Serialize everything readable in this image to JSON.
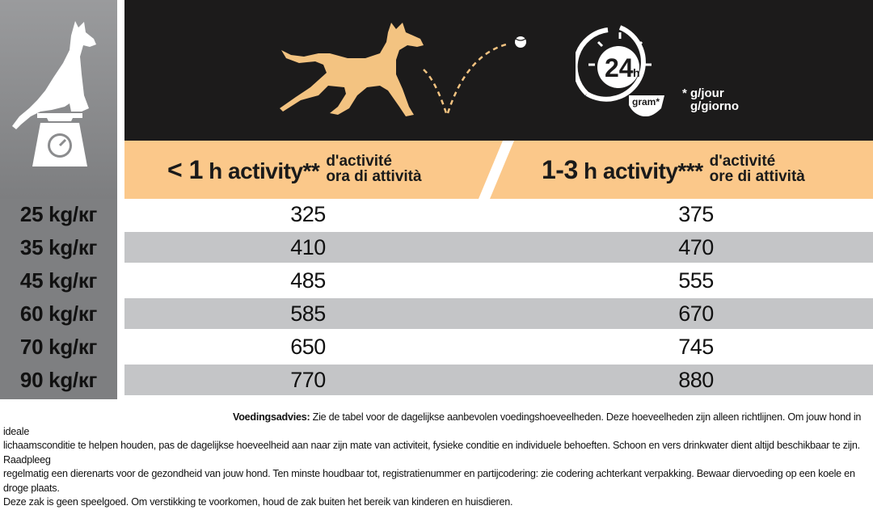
{
  "header": {
    "clock_label": "24",
    "clock_unit": "h",
    "gram_label": "gram*",
    "gram_note_1": "* g/jour",
    "gram_note_2": "g/giorno"
  },
  "columns": [
    {
      "main_lt": "< 1",
      "main_h": " h activity**",
      "sub_1": "d'activité",
      "sub_2": "ora di attività"
    },
    {
      "main_lt": "1-3",
      "main_h": " h activity***",
      "sub_1": "d'activité",
      "sub_2": "ore di attività"
    }
  ],
  "rows": [
    {
      "weight": "25 kg/кг",
      "low": "325",
      "high": "375"
    },
    {
      "weight": "35 kg/кг",
      "low": "410",
      "high": "470"
    },
    {
      "weight": "45 kg/кг",
      "low": "485",
      "high": "555"
    },
    {
      "weight": "60 kg/кг",
      "low": "585",
      "high": "670"
    },
    {
      "weight": "70 kg/кг",
      "low": "650",
      "high": "745"
    },
    {
      "weight": "90 kg/кг",
      "low": "770",
      "high": "880"
    }
  ],
  "advice": {
    "title": "Voedingsadvies:",
    "line1": "Zie de tabel voor de dagelijkse aanbevolen voedingshoeveelheden. Deze hoeveelheden zijn alleen richtlijnen. Om jouw hond in ideale",
    "line2": "lichaamsconditie te helpen houden, pas de dagelijkse hoeveelheid aan naar zijn mate van activiteit, fysieke conditie en individuele behoeften. Schoon en vers drinkwater dient altijd beschikbaar te zijn. Raadpleeg",
    "line3": "regelmatig een dierenarts voor de gezondheid van jouw hond. Ten minste houdbaar tot, registratienummer en partijcodering: zie codering achterkant verpakking. Bewaar diervoeding op een koele en droge plaats.",
    "line4": "Deze zak is geen speelgoed. Om verstikking te voorkomen, houd de zak buiten het bereik van kinderen en huisdieren."
  },
  "colors": {
    "header_dark": "#1c1b1b",
    "band_yellow": "#fbc88a",
    "sidebar_grey": "#7e7f81",
    "row_shade": "#c4c5c7",
    "dog_fill": "#f3c381"
  }
}
